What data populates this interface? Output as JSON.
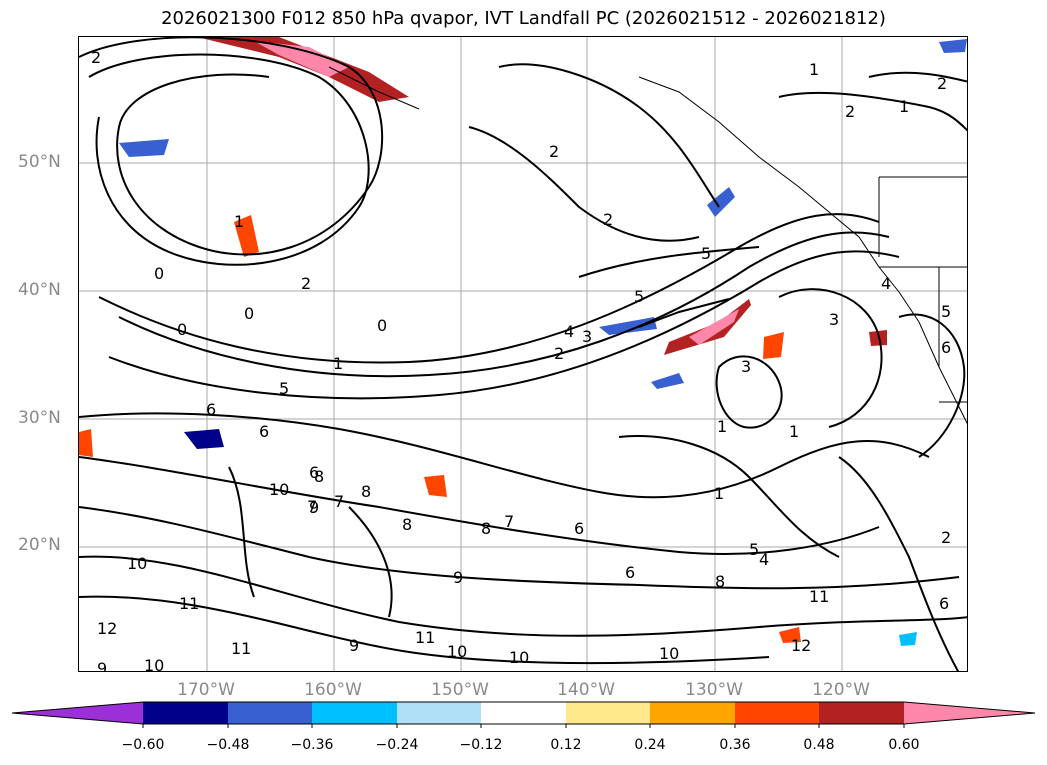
{
  "title": "2026021300 F012 850 hPa qvapor, IVT Landfall PC (2026021512 - 2026021812)",
  "axes": {
    "lat_labels": [
      "50°N",
      "40°N",
      "30°N",
      "20°N"
    ],
    "lon_labels": [
      "170°W",
      "160°W",
      "150°W",
      "140°W",
      "130°W",
      "120°W"
    ]
  },
  "contour_labels": [
    "2",
    "1",
    "2",
    "1",
    "2",
    "2",
    "2",
    "5",
    "1",
    "0",
    "0",
    "2",
    "0",
    "0",
    "1",
    "5",
    "6",
    "6",
    "6",
    "8",
    "10",
    "9",
    "7",
    "8",
    "8",
    "7",
    "6",
    "8",
    "5",
    "3",
    "2",
    "4",
    "5",
    "6",
    "4",
    "3",
    "1",
    "1",
    "7",
    "11",
    "10",
    "12",
    "9",
    "11",
    "10",
    "10",
    "11",
    "12",
    "6",
    "2",
    "5",
    "4",
    "1",
    "3",
    "6",
    "9",
    "10",
    "9",
    "8",
    "10",
    "11"
  ],
  "colorbar": {
    "colors": [
      "#9b30d9",
      "#00008b",
      "#3860d0",
      "#00bfff",
      "#b0e0f8",
      "#ffffff",
      "#ffe98a",
      "#ffa500",
      "#ff4500",
      "#b22222",
      "#ff88aa"
    ],
    "tick_labels": [
      "−0.60",
      "−0.48",
      "−0.36",
      "−0.24",
      "−0.12",
      "0.12",
      "0.24",
      "0.36",
      "0.48",
      "0.60"
    ]
  }
}
